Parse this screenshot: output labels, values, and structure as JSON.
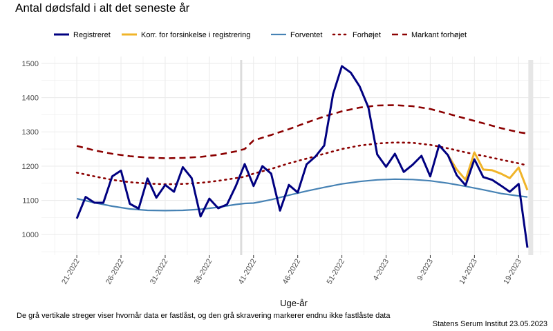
{
  "title": "Antal dødsfald i alt det seneste år",
  "caption": "De grå vertikale streger viser hvornår data er fastlåst, og den grå skravering markerer endnu ikke fastlåste data",
  "source": "Statens Serum Institut  23.05.2023",
  "colors": {
    "registreret": "#000080",
    "korr": "#f0b429",
    "forventet": "#4682b4",
    "forhojet": "#8b0000",
    "markant": "#8b0000",
    "grid": "#ebebeb",
    "shade": "#e6e6e6"
  },
  "chart_data": {
    "type": "line",
    "xlabel": "Uge-år",
    "ylim": [
      940,
      1520
    ],
    "xlim": [
      -4,
      53.5
    ],
    "yticks": [
      1000,
      1100,
      1200,
      1300,
      1400,
      1500
    ],
    "xticks": [
      {
        "pos": 0,
        "label": "21-2022"
      },
      {
        "pos": 5,
        "label": "26-2022"
      },
      {
        "pos": 10,
        "label": "31-2022"
      },
      {
        "pos": 15,
        "label": "36-2022"
      },
      {
        "pos": 20,
        "label": "41-2022"
      },
      {
        "pos": 25,
        "label": "46-2022"
      },
      {
        "pos": 30,
        "label": "51-2022"
      },
      {
        "pos": 35,
        "label": "4-2023"
      },
      {
        "pos": 40,
        "label": "9-2023"
      },
      {
        "pos": 45,
        "label": "14-2023"
      },
      {
        "pos": 50,
        "label": "19-2023"
      }
    ],
    "freeze_line_x": 18.6,
    "shaded_from_x": 51.1,
    "legend": [
      {
        "key": "registreret",
        "label": "Registreret",
        "style": "solid-thick"
      },
      {
        "key": "korr",
        "label": "Korr. for forsinkelse i registrering",
        "style": "solid-thick"
      },
      {
        "key": "forventet",
        "label": "Forventet",
        "style": "solid"
      },
      {
        "key": "forhojet",
        "label": "Forhøjet",
        "style": "dotted"
      },
      {
        "key": "markant",
        "label": "Markant forhøjet",
        "style": "dashed"
      }
    ],
    "series": [
      {
        "key": "registreret",
        "name": "Registreret",
        "x": [
          0,
          1,
          2,
          3,
          4,
          5,
          6,
          7,
          8,
          9,
          10,
          11,
          12,
          13,
          14,
          15,
          16,
          17,
          18,
          19,
          20,
          21,
          22,
          23,
          24,
          25,
          26,
          27,
          28,
          29,
          30,
          31,
          32,
          33,
          34,
          35,
          36,
          37,
          38,
          39,
          40,
          41,
          42,
          43,
          44,
          45,
          46,
          47,
          48,
          49,
          50,
          51
        ],
        "values": [
          1047,
          1110,
          1093,
          1093,
          1170,
          1187,
          1090,
          1076,
          1164,
          1108,
          1145,
          1125,
          1197,
          1165,
          1053,
          1105,
          1077,
          1088,
          1142,
          1206,
          1142,
          1200,
          1178,
          1070,
          1145,
          1123,
          1205,
          1228,
          1260,
          1410,
          1492,
          1473,
          1433,
          1371,
          1234,
          1198,
          1236,
          1183,
          1204,
          1230,
          1170,
          1261,
          1232,
          1173,
          1144,
          1220,
          1168,
          1160,
          1143,
          1125,
          1148,
          962
        ]
      },
      {
        "key": "korr",
        "name": "Korr. for forsinkelse i registrering",
        "x": [
          42,
          43,
          44,
          45,
          46,
          47,
          48,
          49,
          50,
          51
        ],
        "values": [
          1232,
          1190,
          1160,
          1240,
          1190,
          1188,
          1178,
          1165,
          1196,
          1130
        ]
      },
      {
        "key": "forventet",
        "name": "Forventet",
        "x": [
          0,
          2,
          4,
          6,
          8,
          10,
          12,
          14,
          16,
          18,
          19,
          20,
          22,
          24,
          26,
          28,
          30,
          32,
          34,
          36,
          38,
          40,
          42,
          44,
          46,
          48,
          50,
          51
        ],
        "values": [
          1105,
          1093,
          1083,
          1075,
          1071,
          1070,
          1071,
          1074,
          1080,
          1088,
          1091,
          1092,
          1102,
          1115,
          1127,
          1138,
          1148,
          1155,
          1160,
          1162,
          1161,
          1157,
          1150,
          1141,
          1131,
          1120,
          1113,
          1110
        ]
      },
      {
        "key": "forhojet",
        "name": "Forhøjet",
        "x": [
          0,
          2,
          4,
          6,
          8,
          10,
          12,
          14,
          16,
          18,
          19,
          20,
          22,
          24,
          26,
          28,
          30,
          32,
          34,
          36,
          38,
          40,
          42,
          44,
          46,
          48,
          50,
          51
        ],
        "values": [
          1181,
          1170,
          1160,
          1153,
          1149,
          1147,
          1148,
          1151,
          1157,
          1165,
          1169,
          1178,
          1192,
          1208,
          1222,
          1236,
          1250,
          1260,
          1266,
          1269,
          1268,
          1262,
          1252,
          1240,
          1230,
          1219,
          1208,
          1202
        ]
      },
      {
        "key": "markant",
        "name": "Markant forhøjet",
        "x": [
          0,
          2,
          4,
          6,
          8,
          10,
          12,
          14,
          16,
          18,
          19,
          20,
          22,
          24,
          26,
          28,
          30,
          32,
          34,
          36,
          38,
          40,
          42,
          44,
          46,
          48,
          50,
          51
        ],
        "values": [
          1259,
          1246,
          1236,
          1229,
          1225,
          1223,
          1224,
          1227,
          1233,
          1243,
          1250,
          1275,
          1291,
          1308,
          1327,
          1345,
          1360,
          1371,
          1377,
          1378,
          1375,
          1367,
          1353,
          1339,
          1325,
          1311,
          1299,
          1295
        ]
      }
    ]
  }
}
